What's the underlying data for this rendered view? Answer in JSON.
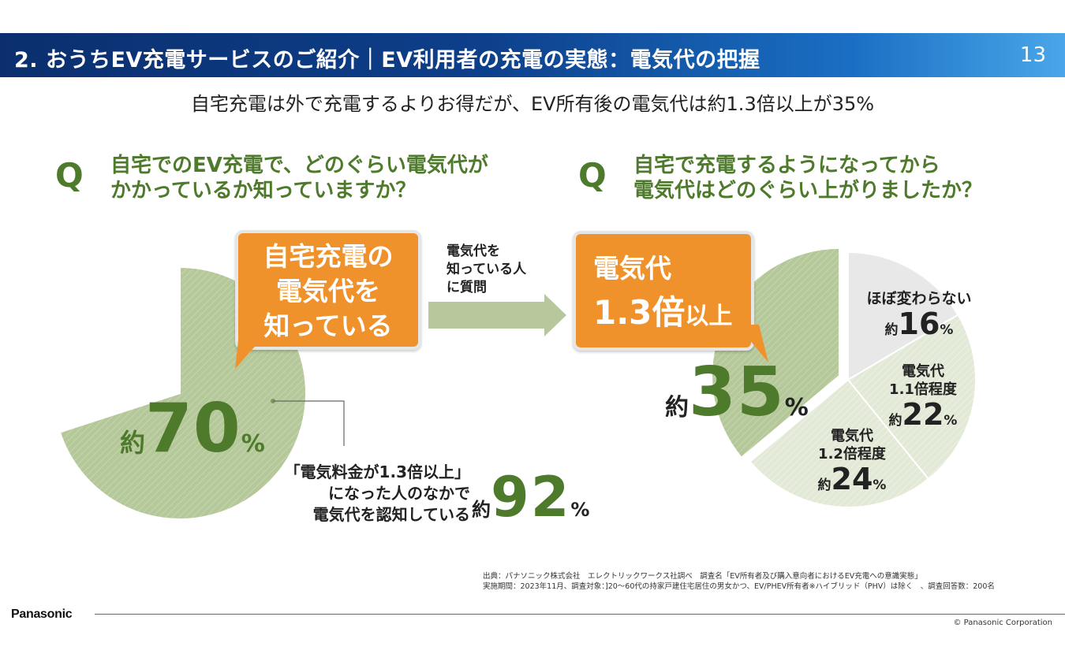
{
  "header": {
    "title": "2. おうちEV充電サービスのご紹介｜EV利用者の充電の実態：電気代の把握",
    "page_number": "13"
  },
  "subtitle": "自宅充電は外で充電するよりお得だが、EV所有後の電気代は約1.3倍以上が35%",
  "left": {
    "q_mark": "Q",
    "question_line1": "自宅でのEV充電で、どのぐらい電気代が",
    "question_line2": "かかっているか知っていますか？",
    "callout_line1": "自宅充電の",
    "callout_line2": "電気代を",
    "callout_line3": "知っている",
    "big_prefix": "約",
    "big_value": "70",
    "big_unit": "%",
    "note_line1": "「電気料金が1.3倍以上」",
    "note_line2": "になった人のなかで",
    "note_line3": "電気代を認知している",
    "note_prefix": "約",
    "note_value": "92",
    "note_unit": "%"
  },
  "arrow": {
    "line1": "電気代を",
    "line2": "知っている人",
    "line3": "に質問"
  },
  "right": {
    "q_mark": "Q",
    "question_line1": "自宅で充電するようになってから",
    "question_line2": "電気代はどのぐらい上がりましたか？",
    "callout_line1": "電気代",
    "callout_value": "1.3倍",
    "callout_suffix": "以上",
    "big_prefix": "約",
    "big_value": "35",
    "big_unit": "%",
    "slice_labels": [
      {
        "line1": "ほぼ変わらない",
        "prefix": "約",
        "value": "16",
        "unit": "%"
      },
      {
        "line1": "電気代",
        "line2": "1.1倍程度",
        "prefix": "約",
        "value": "22",
        "unit": "%"
      },
      {
        "line1": "電気代",
        "line2": "1.2倍程度",
        "prefix": "約",
        "value": "24",
        "unit": "%"
      }
    ]
  },
  "source": {
    "line1": "出典：パナソニック株式会社　エレクトリックワークス社調べ　調査名「EV所有者及び購入意向者におけるEV充電への意識実態」",
    "line2": "実施期間：2023年11月、調査対象：]20～60代の持家戸建住宅居住の男女かつ、EV/PHEV所有者※ハイブリッド（PHV）は除く　、調査回答数：200名"
  },
  "footer": {
    "logo": "Panasonic",
    "copyright": "© Panasonic Corporation"
  },
  "chart_data": [
    {
      "type": "pie",
      "title": "",
      "slices": [
        {
          "label": "自宅充電の電気代を知っている",
          "value": 70,
          "color": "#b7c99c"
        },
        {
          "label": "",
          "value": 30,
          "color": "#ffffff"
        }
      ],
      "start_angle_deg": 0
    },
    {
      "type": "pie",
      "title": "",
      "slices": [
        {
          "label": "電気代1.3倍以上",
          "value": 35,
          "color": "#b7c99c"
        },
        {
          "label": "電気代1.2倍程度",
          "value": 24,
          "color": "#d5dfc6"
        },
        {
          "label": "電気代1.1倍程度",
          "value": 22,
          "color": "#e6ecdc"
        },
        {
          "label": "ほぼ変わらない",
          "value": 16,
          "color": "#e8e8e8"
        }
      ],
      "start_angle_deg": 0
    }
  ]
}
